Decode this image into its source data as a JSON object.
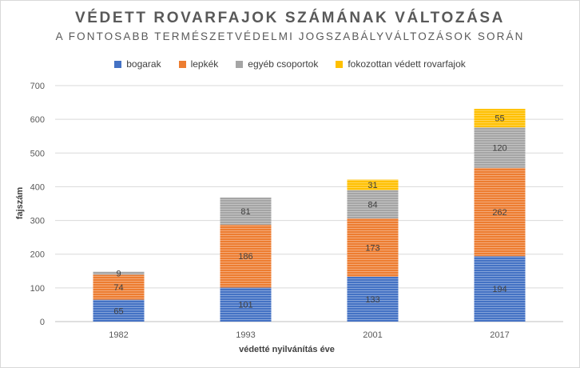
{
  "chart_data": {
    "type": "bar",
    "stacked": true,
    "title": "VÉDETT ROVARFAJOK SZÁMÁNAK VÁLTOZÁSA",
    "subtitle": "A FONTOSABB TERMÉSZETVÉDELMI JOGSZABÁLYVÁLTOZÁSOK SORÁN",
    "xlabel": "védetté nyilvánítás éve",
    "ylabel": "fajszám",
    "categories": [
      "1982",
      "1993",
      "2001",
      "2017"
    ],
    "ylim": [
      0,
      700
    ],
    "yticks": [
      "0",
      "100",
      "200",
      "300",
      "400",
      "500",
      "600",
      "700"
    ],
    "grid": true,
    "legend_position": "top",
    "series": [
      {
        "name": "bogarak",
        "color": "#4472c4",
        "values": [
          65,
          101,
          133,
          194
        ]
      },
      {
        "name": "lepkék",
        "color": "#ed7d31",
        "values": [
          74,
          186,
          173,
          262
        ]
      },
      {
        "name": "egyéb csoportok",
        "color": "#a5a5a5",
        "values": [
          9,
          81,
          84,
          120
        ]
      },
      {
        "name": "fokozottan védett rovarfajok",
        "color": "#ffc000",
        "values": [
          null,
          null,
          31,
          55
        ]
      }
    ]
  }
}
